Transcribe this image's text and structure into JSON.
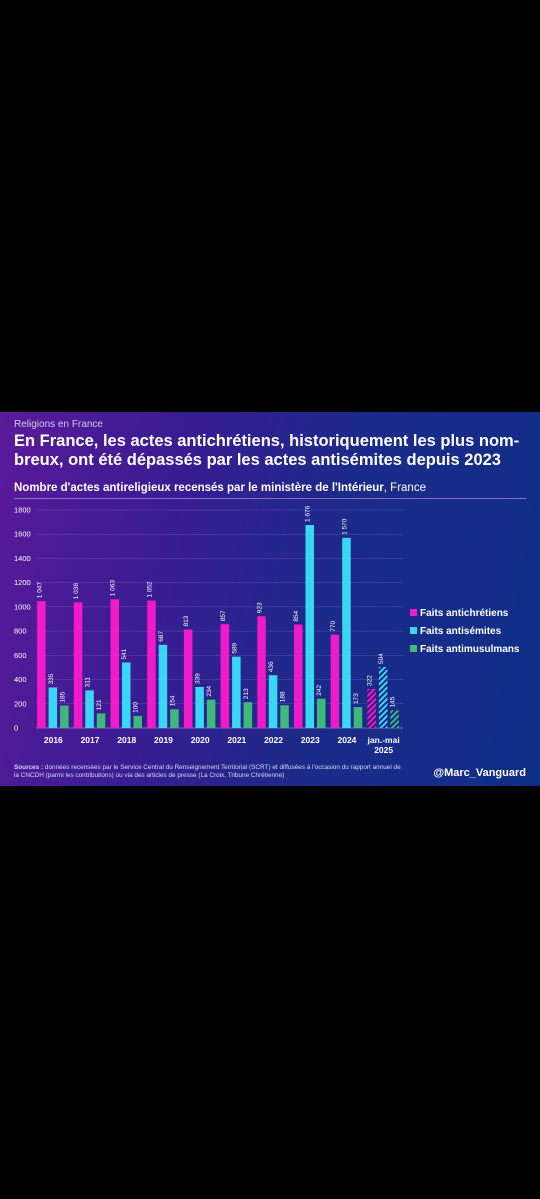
{
  "header": {
    "category": "Religions en France",
    "headline": "En France, les actes antichrétiens, historiquement les plus nom-breux, ont été dépassés par les actes antisémites depuis 2023",
    "subtitle_bold": "Nombre d'actes antireligieux recensés par le ministère de l'Intérieur",
    "subtitle_rest": ", France"
  },
  "footer": {
    "sources_label": "Sources :",
    "sources_text": " données recensées par le Service Central du Renseignement Territorial (SCRT) et diffusées à l'occasion du rapport annuel de la CNCDH (parmi les contributions) ou via des articles de presse (La Croix, Tribune Chrétienne)",
    "handle": "@Marc_Vanguard"
  },
  "colors": {
    "antichretiens": "#f01ac8",
    "antisemites": "#3ad7f5",
    "antimusulmans": "#3fb97a"
  },
  "chart_data": {
    "type": "bar",
    "categories": [
      "2016",
      "2017",
      "2018",
      "2019",
      "2020",
      "2021",
      "2022",
      "2023",
      "2024",
      "jan.-mai 2025"
    ],
    "series": [
      {
        "name": "Faits antichrétiens",
        "values": [
          1047,
          1038,
          1063,
          1052,
          813,
          857,
          923,
          854,
          770,
          322
        ],
        "labels": [
          "1 047",
          "1 038",
          "1 063",
          "1 052",
          "813",
          "857",
          "923",
          "854",
          "770",
          "322"
        ]
      },
      {
        "name": "Faits antisémites",
        "values": [
          335,
          311,
          541,
          687,
          339,
          589,
          436,
          1676,
          1570,
          504
        ],
        "labels": [
          "335",
          "311",
          "541",
          "687",
          "339",
          "589",
          "436",
          "1 676",
          "1 570",
          "504"
        ]
      },
      {
        "name": "Faits antimusulmans",
        "values": [
          185,
          121,
          100,
          154,
          234,
          213,
          188,
          242,
          173,
          145
        ],
        "labels": [
          "185",
          "121",
          "100",
          "154",
          "234",
          "213",
          "188",
          "242",
          "173",
          "145"
        ]
      }
    ],
    "partial_category": "jan.-mai 2025",
    "ylim": [
      0,
      1800
    ],
    "yticks": [
      0,
      200,
      400,
      600,
      800,
      1000,
      1200,
      1400,
      1600,
      1800
    ],
    "grid": true,
    "legend": "right"
  }
}
